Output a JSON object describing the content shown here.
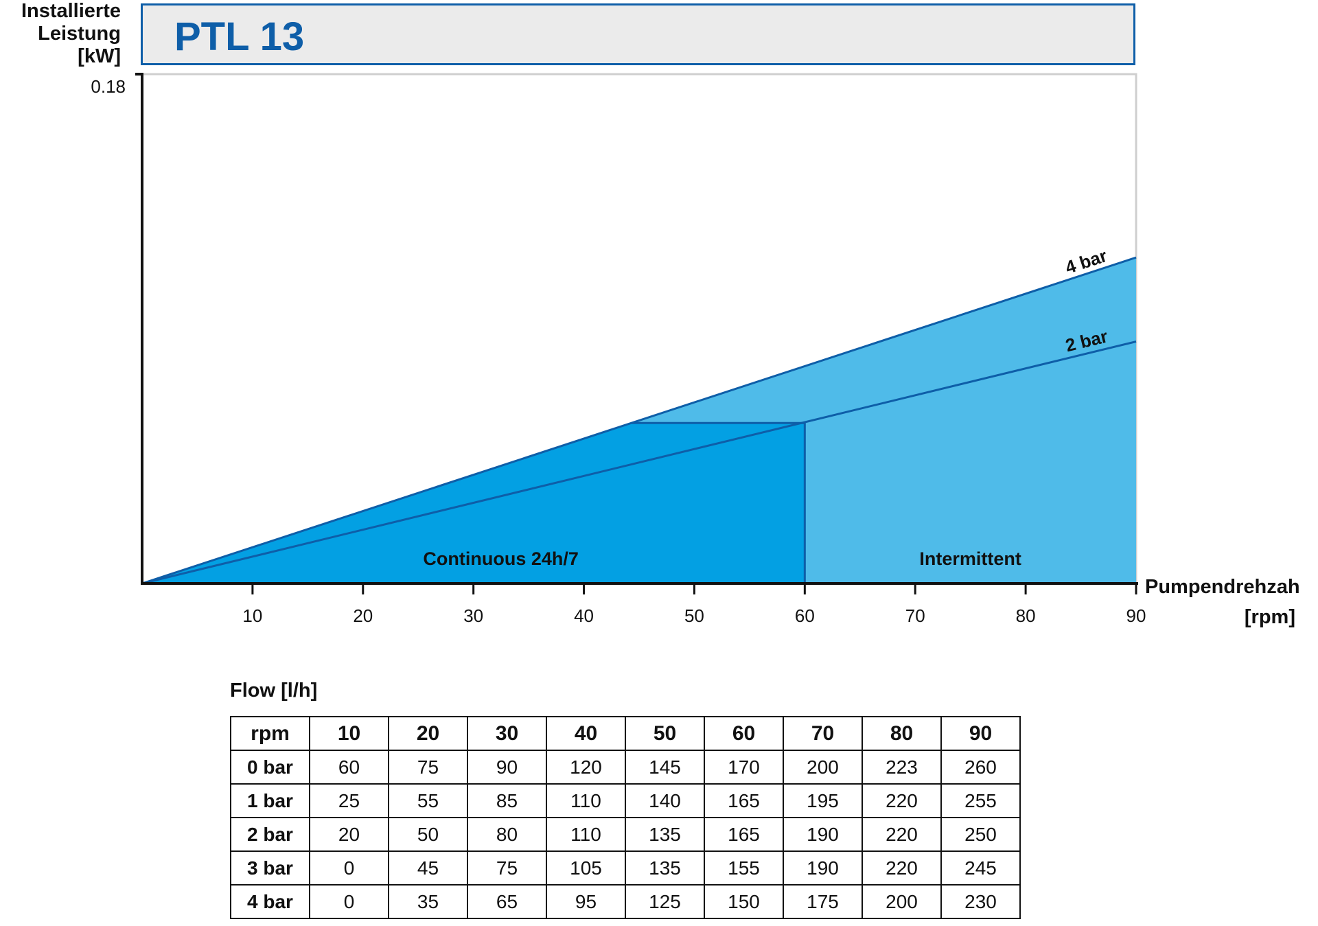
{
  "chart_data": {
    "type": "area",
    "title": "PTL 13",
    "ylabel": [
      "Installierte",
      "Leistung",
      "[kW]"
    ],
    "xlabel": [
      "Pumpendrehzah",
      "[rpm]"
    ],
    "y_tick_labels": [
      "0.18"
    ],
    "ylim": [
      0,
      0.18
    ],
    "xlim": [
      0,
      90
    ],
    "x_ticks": [
      10,
      20,
      30,
      40,
      50,
      60,
      70,
      80,
      90
    ],
    "series": [
      {
        "name": "4 bar",
        "x": [
          0,
          90
        ],
        "y": [
          0,
          0.1152
        ]
      },
      {
        "name": "2 bar",
        "x": [
          0,
          90
        ],
        "y": [
          0,
          0.0855
        ]
      }
    ],
    "regions": [
      {
        "label": "Continuous 24h/7",
        "x_range": [
          0,
          60
        ],
        "color": "#03a0e3"
      },
      {
        "label": "Intermittent",
        "x_range": [
          60,
          90
        ],
        "color": "#4fbbe9"
      }
    ],
    "continuous_limit_kw": 0.0567,
    "colors": {
      "title": "#0e5ea8",
      "line": "#0e5ea8",
      "continuous": "#03a0e3",
      "intermittent": "#4fbbe9",
      "title_box": "#ebebeb"
    },
    "grid": false
  },
  "table": {
    "title": "Flow [l/h]",
    "header": [
      "rpm",
      "10",
      "20",
      "30",
      "40",
      "50",
      "60",
      "70",
      "80",
      "90"
    ],
    "rows": [
      {
        "label": "0 bar",
        "values": [
          "60",
          "75",
          "90",
          "120",
          "145",
          "170",
          "200",
          "223",
          "260"
        ]
      },
      {
        "label": "1 bar",
        "values": [
          "25",
          "55",
          "85",
          "110",
          "140",
          "165",
          "195",
          "220",
          "255"
        ]
      },
      {
        "label": "2 bar",
        "values": [
          "20",
          "50",
          "80",
          "110",
          "135",
          "165",
          "190",
          "220",
          "250"
        ]
      },
      {
        "label": "3 bar",
        "values": [
          "0",
          "45",
          "75",
          "105",
          "135",
          "155",
          "190",
          "220",
          "245"
        ]
      },
      {
        "label": "4 bar",
        "values": [
          "0",
          "35",
          "65",
          "95",
          "125",
          "150",
          "175",
          "200",
          "230"
        ]
      }
    ]
  }
}
